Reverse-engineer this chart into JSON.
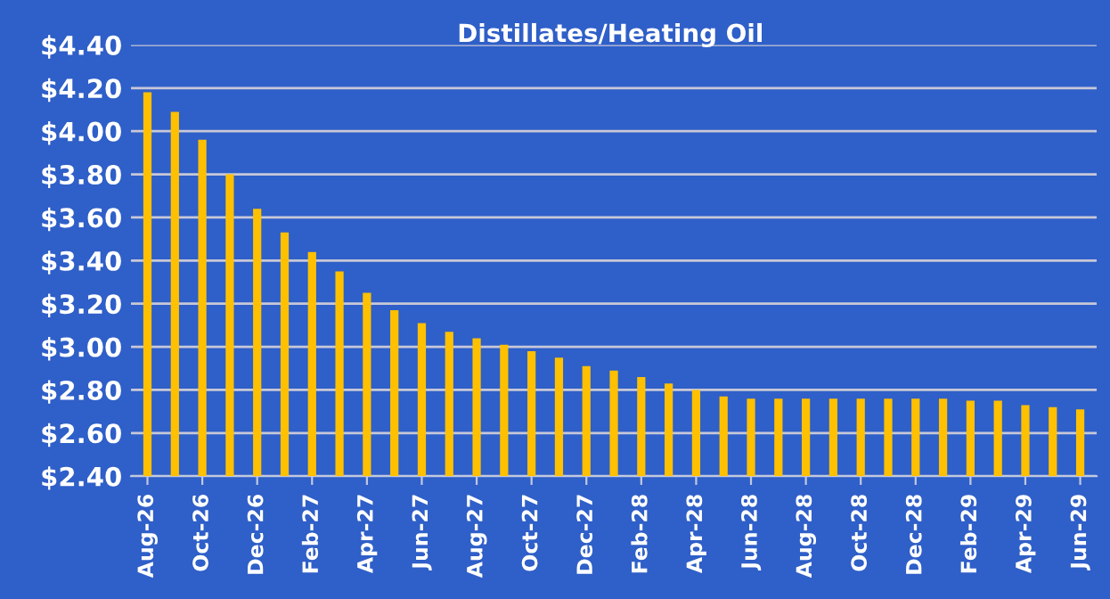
{
  "chart_data": {
    "type": "bar",
    "title": "Distillates/Heating Oil",
    "categories": [
      "Aug-26",
      null,
      "Oct-26",
      null,
      "Dec-26",
      null,
      "Feb-27",
      null,
      "Apr-27",
      null,
      "Jun-27",
      null,
      "Aug-27",
      null,
      "Oct-27",
      null,
      "Dec-27",
      null,
      "Feb-28",
      null,
      "Apr-28",
      null,
      "Jun-28",
      null,
      "Aug-28",
      null,
      "Oct-28",
      null,
      "Dec-28",
      null,
      "Feb-29",
      null,
      "Apr-29",
      null,
      "Jun-29"
    ],
    "values": [
      4.18,
      4.09,
      3.96,
      3.8,
      3.64,
      3.53,
      3.44,
      3.35,
      3.25,
      3.17,
      3.11,
      3.07,
      3.04,
      3.01,
      2.98,
      2.95,
      2.91,
      2.89,
      2.86,
      2.83,
      2.8,
      2.77,
      2.76,
      2.76,
      2.76,
      2.76,
      2.76,
      2.76,
      2.76,
      2.76,
      2.75,
      2.75,
      2.73,
      2.72,
      2.71
    ],
    "color": "#ffc000",
    "ylim": [
      2.4,
      4.4
    ],
    "yticks": [
      {
        "value": 2.4,
        "label": "$2.40"
      },
      {
        "value": 2.6,
        "label": "$2.60"
      },
      {
        "value": 2.8,
        "label": "$2.80"
      },
      {
        "value": 3.0,
        "label": "$3.00"
      },
      {
        "value": 3.2,
        "label": "$3.20"
      },
      {
        "value": 3.4,
        "label": "$3.40"
      },
      {
        "value": 3.6,
        "label": "$3.60"
      },
      {
        "value": 3.8,
        "label": "$3.80"
      },
      {
        "value": 4.0,
        "label": "$4.00"
      },
      {
        "value": 4.2,
        "label": "$4.20"
      },
      {
        "value": 4.4,
        "label": "$4.40"
      }
    ],
    "grid": "y"
  }
}
